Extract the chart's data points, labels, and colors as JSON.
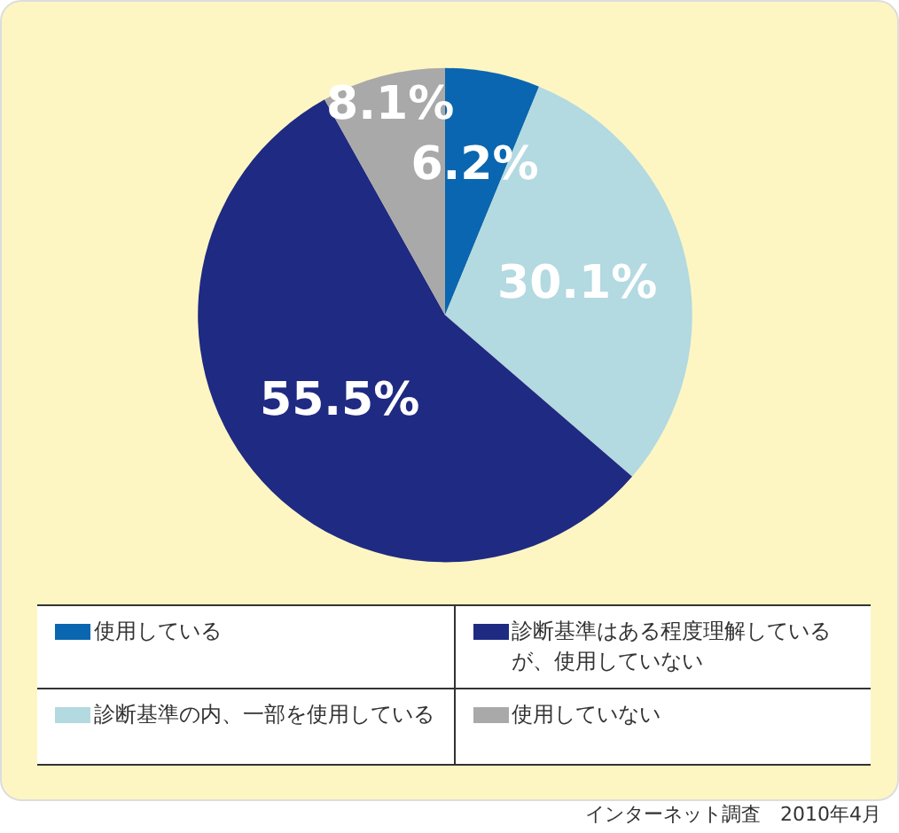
{
  "chart_data": {
    "type": "pie",
    "categories": [
      "使用している",
      "診断基準の内、一部を使用している",
      "診断基準はある程度理解しているが、使用していない",
      "使用していない"
    ],
    "values": [
      6.2,
      30.1,
      55.5,
      8.1
    ],
    "value_labels": [
      "6.2%",
      "30.1%",
      "55.5%",
      "8.1%"
    ],
    "colors": [
      "#0a66b0",
      "#b3d9e1",
      "#1f2a82",
      "#a9a9a9"
    ],
    "legend": "bottom",
    "annotations": [
      "インターネット調査　2010年4月"
    ]
  }
}
